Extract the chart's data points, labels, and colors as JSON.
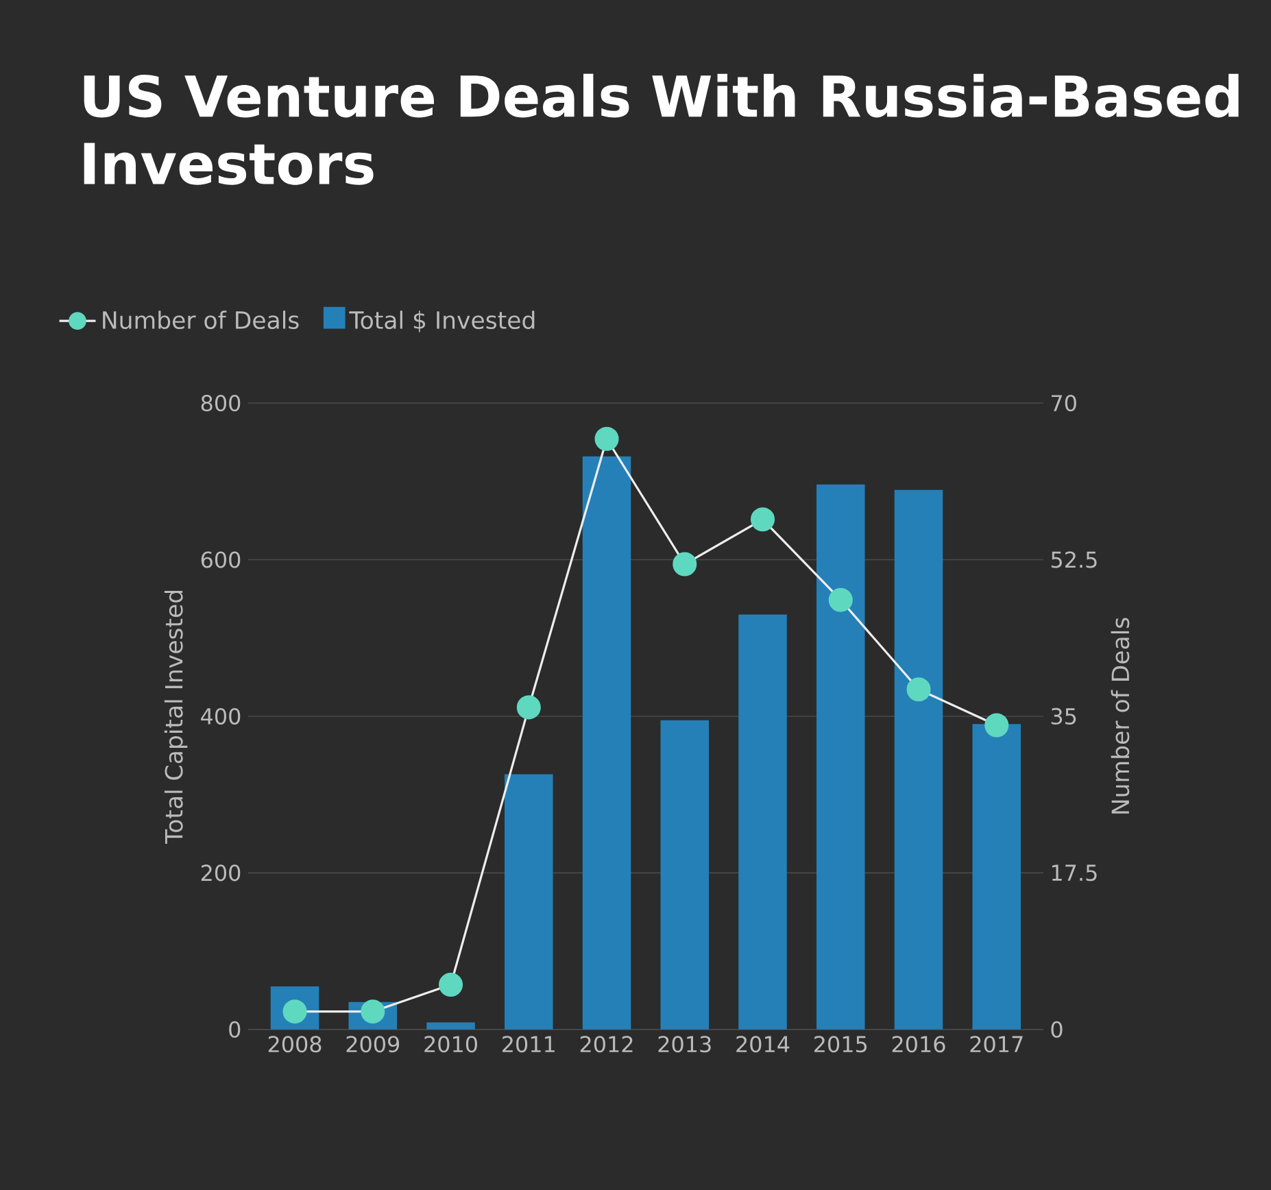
{
  "chart_data": {
    "type": "bar",
    "title": "US Venture Deals With Russia-Based Investors",
    "categories": [
      "2008",
      "2009",
      "2010",
      "2011",
      "2012",
      "2013",
      "2014",
      "2015",
      "2016",
      "2017"
    ],
    "series": [
      {
        "name": "Total $ Invested",
        "color": "#2580b8",
        "values": [
          55,
          35,
          9,
          326,
          732,
          395,
          530,
          696,
          689,
          390
        ]
      },
      {
        "name": "Number of Deals",
        "type": "line",
        "axis": "y2",
        "color": "#5fd8c0",
        "marker": "circle",
        "values": [
          2,
          2,
          5,
          36,
          66,
          52,
          57,
          48,
          38,
          34
        ]
      }
    ],
    "ylabel": "Total Capital Invested",
    "y2label": "Number of Deals",
    "ylim": [
      0,
      800
    ],
    "yticks": [
      0,
      200,
      400,
      600,
      800
    ],
    "y2lim": [
      0,
      70
    ],
    "y2ticks": [
      0,
      17.5,
      35,
      52.5,
      70
    ],
    "grid": "y",
    "legend": "top left"
  }
}
